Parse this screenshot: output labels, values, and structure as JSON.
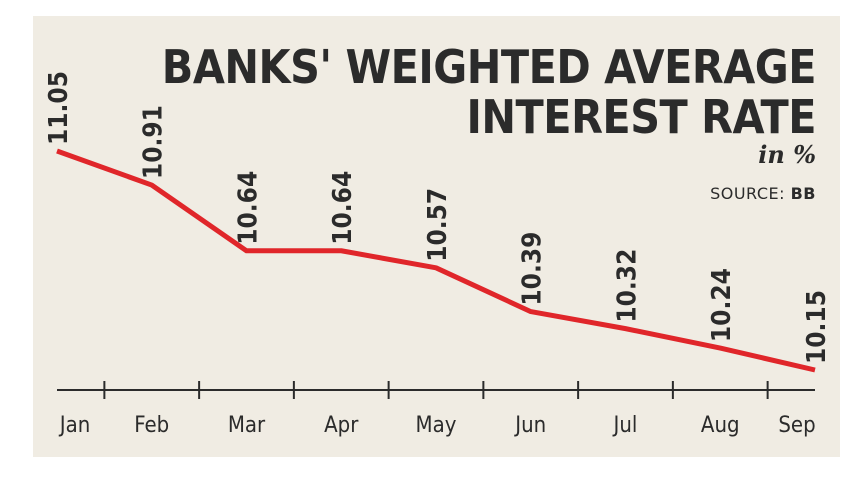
{
  "chart_data": {
    "type": "line",
    "title_line1": "BANKS' WEIGHTED AVERAGE",
    "title_line2": "INTEREST RATE",
    "unit": "in %",
    "source_label": "SOURCE:",
    "source_value": "BB",
    "categories": [
      "Jan",
      "Feb",
      "Mar",
      "Apr",
      "May",
      "Jun",
      "Jul",
      "Aug",
      "Sep"
    ],
    "values": [
      11.05,
      10.91,
      10.64,
      10.64,
      10.57,
      10.39,
      10.32,
      10.24,
      10.15
    ],
    "value_labels": [
      "11.05",
      "10.91",
      "10.64",
      "10.64",
      "10.57",
      "10.39",
      "10.32",
      "10.24",
      "10.15"
    ],
    "line_color": "#e0262a",
    "grid": false,
    "legend": "none"
  }
}
